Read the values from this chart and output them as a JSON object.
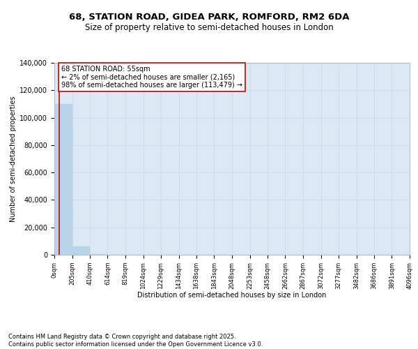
{
  "title": "68, STATION ROAD, GIDEA PARK, ROMFORD, RM2 6DA",
  "subtitle": "Size of property relative to semi-detached houses in London",
  "xlabel": "Distribution of semi-detached houses by size in London",
  "ylabel": "Number of semi-detached properties",
  "annotation_text": "68 STATION ROAD: 55sqm\n← 2% of semi-detached houses are smaller (2,165)\n98% of semi-detached houses are larger (113,479) →",
  "bin_edges": [
    0,
    205,
    410,
    614,
    819,
    1024,
    1229,
    1434,
    1638,
    1843,
    2048,
    2253,
    2458,
    2662,
    2867,
    3072,
    3277,
    3482,
    3686,
    3891,
    4096
  ],
  "bar_heights": [
    110000,
    6000,
    400,
    150,
    80,
    50,
    30,
    20,
    12,
    8,
    6,
    4,
    3,
    2,
    2,
    1,
    1,
    1,
    1,
    1
  ],
  "bar_color": "#b8d4ea",
  "grid_color": "#c8daea",
  "bg_color": "#dce9f5",
  "vline_color": "#cc0000",
  "vline_x": 55,
  "ylim": [
    0,
    140000
  ],
  "yticks": [
    0,
    20000,
    40000,
    60000,
    80000,
    100000,
    120000,
    140000
  ],
  "footer_text": "Contains HM Land Registry data © Crown copyright and database right 2025.\nContains public sector information licensed under the Open Government Licence v3.0.",
  "title_fontsize": 9.5,
  "subtitle_fontsize": 8.5,
  "annotation_fontsize": 7,
  "tick_label_fontsize": 6,
  "axis_label_fontsize": 7,
  "ylabel_fontsize": 7,
  "footer_fontsize": 6
}
